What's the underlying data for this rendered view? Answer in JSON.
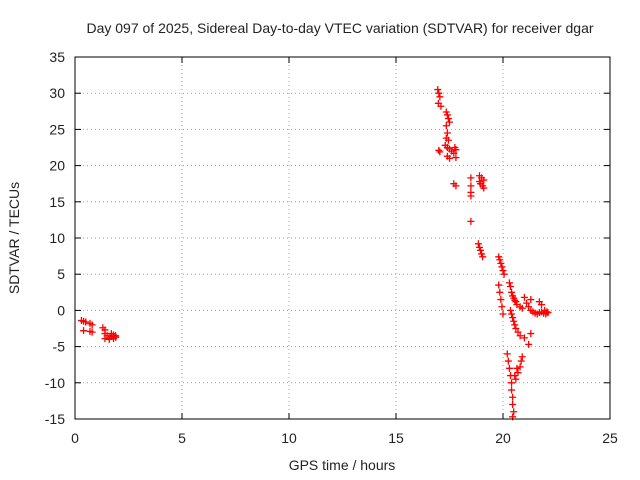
{
  "chart_data": {
    "type": "scatter",
    "title": "Day 097 of 2025, Sidereal Day-to-day VTEC variation (SDTVAR) for receiver dgar",
    "xlabel": "GPS time / hours",
    "ylabel": "SDTVAR / TECUs",
    "xlim": [
      0,
      25
    ],
    "ylim": [
      -15,
      35
    ],
    "xticks": [
      0,
      5,
      10,
      15,
      20,
      25
    ],
    "yticks": [
      -15,
      -10,
      -5,
      0,
      5,
      10,
      15,
      20,
      25,
      30,
      35
    ],
    "grid": true,
    "marker": "plus",
    "color": "#ff0000",
    "series": [
      {
        "name": "SDTVAR",
        "points": [
          [
            0.3,
            -1.4
          ],
          [
            0.4,
            -1.5
          ],
          [
            0.5,
            -1.6
          ],
          [
            0.7,
            -1.8
          ],
          [
            0.8,
            -2.0
          ],
          [
            0.4,
            -2.8
          ],
          [
            0.7,
            -2.9
          ],
          [
            0.8,
            -3.0
          ],
          [
            1.3,
            -2.4
          ],
          [
            1.4,
            -2.7
          ],
          [
            1.4,
            -3.2
          ],
          [
            1.5,
            -3.5
          ],
          [
            1.4,
            -3.9
          ],
          [
            1.6,
            -3.8
          ],
          [
            1.7,
            -3.6
          ],
          [
            1.8,
            -3.4
          ],
          [
            1.9,
            -3.7
          ],
          [
            1.6,
            -4.0
          ],
          [
            1.8,
            -3.9
          ],
          [
            1.7,
            -3.2
          ],
          [
            1.9,
            -3.5
          ],
          [
            16.95,
            30.5
          ],
          [
            17.0,
            30.0
          ],
          [
            17.05,
            29.5
          ],
          [
            16.98,
            28.6
          ],
          [
            17.1,
            28.2
          ],
          [
            17.0,
            22.1
          ],
          [
            17.05,
            21.9
          ],
          [
            17.35,
            27.4
          ],
          [
            17.4,
            27.0
          ],
          [
            17.45,
            26.5
          ],
          [
            17.5,
            26.0
          ],
          [
            17.35,
            25.5
          ],
          [
            17.4,
            24.5
          ],
          [
            17.35,
            23.8
          ],
          [
            17.45,
            23.5
          ],
          [
            17.3,
            22.8
          ],
          [
            17.4,
            22.5
          ],
          [
            17.5,
            22.3
          ],
          [
            17.6,
            22.0
          ],
          [
            17.7,
            21.7
          ],
          [
            17.4,
            21.3
          ],
          [
            17.5,
            21.0
          ],
          [
            17.8,
            21.1
          ],
          [
            17.75,
            22.5
          ],
          [
            17.8,
            22.2
          ],
          [
            17.7,
            17.5
          ],
          [
            17.8,
            17.2
          ],
          [
            18.5,
            18.3
          ],
          [
            18.5,
            17.2
          ],
          [
            18.5,
            16.3
          ],
          [
            18.5,
            15.8
          ],
          [
            18.5,
            12.3
          ],
          [
            18.9,
            18.6
          ],
          [
            19.0,
            18.3
          ],
          [
            19.1,
            18.0
          ],
          [
            18.95,
            17.5
          ],
          [
            19.05,
            17.2
          ],
          [
            19.1,
            16.9
          ],
          [
            18.9,
            17.8
          ],
          [
            18.85,
            9.2
          ],
          [
            18.9,
            8.7
          ],
          [
            18.95,
            8.3
          ],
          [
            19.0,
            7.8
          ],
          [
            19.05,
            7.4
          ],
          [
            19.8,
            7.4
          ],
          [
            19.85,
            7.0
          ],
          [
            19.9,
            6.5
          ],
          [
            19.95,
            6.0
          ],
          [
            20.0,
            5.5
          ],
          [
            20.05,
            5.0
          ],
          [
            19.8,
            3.5
          ],
          [
            19.85,
            2.5
          ],
          [
            19.9,
            1.5
          ],
          [
            19.95,
            0.5
          ],
          [
            20.0,
            -0.5
          ],
          [
            20.3,
            3.8
          ],
          [
            20.35,
            3.3
          ],
          [
            20.4,
            2.5
          ],
          [
            20.45,
            2.0
          ],
          [
            20.5,
            1.7
          ],
          [
            20.55,
            1.4
          ],
          [
            20.6,
            1.2
          ],
          [
            20.65,
            0.8
          ],
          [
            20.8,
            0.5
          ],
          [
            20.9,
            0.3
          ],
          [
            20.35,
            0.0
          ],
          [
            20.4,
            -0.5
          ],
          [
            20.45,
            -1.0
          ],
          [
            20.5,
            -1.5
          ],
          [
            20.55,
            -2.0
          ],
          [
            20.6,
            -2.5
          ],
          [
            20.7,
            -3.0
          ],
          [
            20.8,
            -3.5
          ],
          [
            21.0,
            -3.8
          ],
          [
            21.2,
            -4.7
          ],
          [
            21.3,
            -3.2
          ],
          [
            20.2,
            -6.0
          ],
          [
            20.25,
            -7.0
          ],
          [
            20.3,
            -8.0
          ],
          [
            20.35,
            -9.0
          ],
          [
            20.4,
            -10.0
          ],
          [
            20.4,
            -11.0
          ],
          [
            20.45,
            -12.0
          ],
          [
            20.45,
            -13.0
          ],
          [
            20.5,
            -14.0
          ],
          [
            20.45,
            -14.7
          ],
          [
            20.6,
            -9.5
          ],
          [
            20.7,
            -8.6
          ],
          [
            20.8,
            -7.8
          ],
          [
            20.85,
            -7.0
          ],
          [
            20.9,
            -6.4
          ],
          [
            20.55,
            -9.0
          ],
          [
            20.65,
            -8.0
          ],
          [
            21.0,
            1.8
          ],
          [
            21.1,
            1.0
          ],
          [
            21.2,
            0.5
          ],
          [
            21.3,
            0.0
          ],
          [
            21.4,
            -0.2
          ],
          [
            21.5,
            -0.4
          ],
          [
            21.6,
            -0.5
          ],
          [
            21.7,
            -0.3
          ],
          [
            21.8,
            -0.2
          ],
          [
            21.9,
            -0.4
          ],
          [
            22.0,
            -0.5
          ],
          [
            22.1,
            -0.3
          ],
          [
            21.7,
            1.2
          ],
          [
            21.8,
            0.8
          ],
          [
            21.3,
            1.5
          ],
          [
            21.95,
            0.0
          ],
          [
            22.05,
            -0.2
          ]
        ]
      }
    ]
  }
}
